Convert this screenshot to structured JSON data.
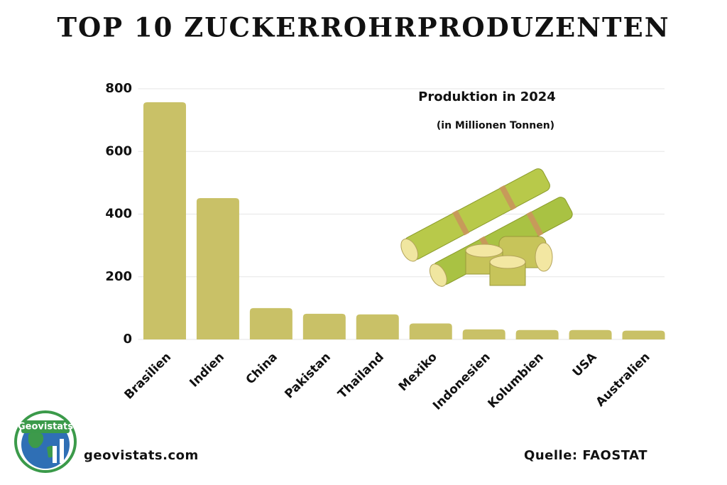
{
  "chart_data": {
    "type": "bar",
    "title": "TOP 10 ZUCKERROHRPRODUZENTEN",
    "subtitle": "Produktion in 2024",
    "annotations": [
      "(in Millionen Tonnen)",
      "geovistats.com",
      "Quelle: FAOSTAT",
      "Geovistats"
    ],
    "categories": [
      "Brasilien",
      "Indien",
      "China",
      "Pakistan",
      "Thailand",
      "Mexiko",
      "Indonesien",
      "Kolumbien",
      "USA",
      "Australien"
    ],
    "values": [
      757,
      451,
      100,
      82,
      80,
      51,
      32,
      30,
      30,
      28
    ],
    "color": "#c9c167",
    "ylim": [
      0,
      800
    ],
    "yticks": [
      0,
      200,
      400,
      600,
      800
    ],
    "grid": true
  }
}
